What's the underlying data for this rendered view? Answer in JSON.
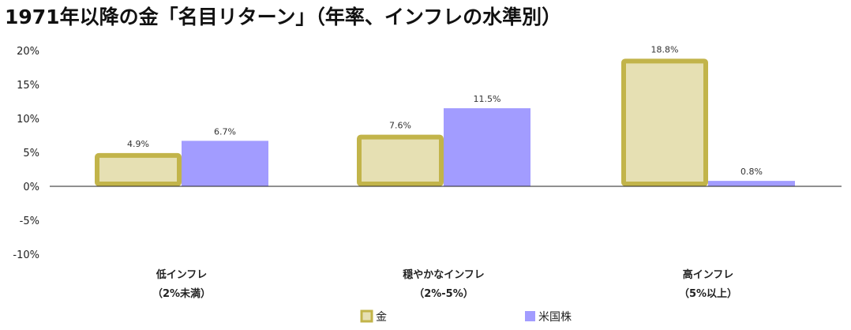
{
  "chart_data": {
    "type": "bar",
    "title": "1971年以降の金「名目リターン」（年率、インフレの水準別）",
    "categories": [
      {
        "line1": "低インフレ",
        "line2": "（2%未満）"
      },
      {
        "line1": "穏やかなインフレ",
        "line2": "（2%-5%）"
      },
      {
        "line1": "高インフレ",
        "line2": "（5%以上）"
      }
    ],
    "series": [
      {
        "name": "金",
        "values": [
          4.9,
          7.6,
          18.8
        ],
        "labels": [
          "4.9%",
          "7.6%",
          "18.8%"
        ],
        "fill": "#e6e0b3",
        "stroke": "#c2b44a"
      },
      {
        "name": "米国株",
        "values": [
          6.7,
          11.5,
          0.8
        ],
        "labels": [
          "6.7%",
          "11.5%",
          "0.8%"
        ],
        "fill": "#a29cff",
        "stroke": "#a29cff"
      }
    ],
    "yticks": [
      20,
      15,
      10,
      5,
      0,
      -5,
      -10
    ],
    "ytick_labels": [
      "20%",
      "15%",
      "10%",
      "5%",
      "0%",
      "-5%",
      "-10%"
    ],
    "ylim": [
      -10,
      20
    ],
    "xlabel": "",
    "ylabel": "",
    "grid": false,
    "legend_position": "bottom-center"
  }
}
